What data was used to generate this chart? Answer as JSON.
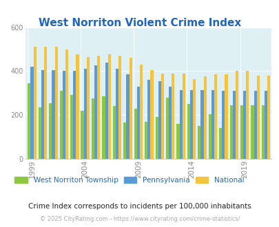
{
  "title": "West Norriton Violent Crime Index",
  "subtitle": "Crime Index corresponds to incidents per 100,000 inhabitants",
  "footer": "© 2025 CityRating.com - https://www.cityrating.com/crime-statistics/",
  "years": [
    1999,
    2000,
    2001,
    2002,
    2003,
    2004,
    2005,
    2006,
    2007,
    2008,
    2009,
    2010,
    2011,
    2012,
    2013,
    2014,
    2015,
    2016,
    2017,
    2018,
    2019,
    2020,
    2021
  ],
  "west_norriton": [
    345,
    235,
    255,
    310,
    290,
    220,
    275,
    285,
    240,
    165,
    230,
    170,
    190,
    280,
    160,
    250,
    150,
    205,
    140,
    245,
    245,
    245,
    245
  ],
  "pennsylvania": [
    420,
    405,
    405,
    400,
    400,
    410,
    425,
    440,
    410,
    385,
    330,
    360,
    355,
    330,
    315,
    315,
    315,
    315,
    310,
    310,
    310,
    310,
    310
  ],
  "national": [
    510,
    510,
    510,
    500,
    475,
    465,
    470,
    475,
    470,
    460,
    430,
    405,
    390,
    390,
    390,
    365,
    375,
    385,
    385,
    400,
    400,
    380,
    380
  ],
  "bar_colors": {
    "west_norriton": "#8dc641",
    "pennsylvania": "#5b9bd5",
    "national": "#f5c342"
  },
  "plot_bg": "#dff0f5",
  "ylim": [
    0,
    600
  ],
  "yticks": [
    0,
    200,
    400,
    600
  ],
  "tick_years": [
    1999,
    2004,
    2009,
    2014,
    2019
  ],
  "legend_labels": [
    "West Norriton Township",
    "Pennsylvania",
    "National"
  ],
  "title_color": "#2266bb",
  "subtitle_color": "#222222",
  "footer_color": "#aaaaaa",
  "grid_color": "#ffffff",
  "bar_width": 0.27
}
